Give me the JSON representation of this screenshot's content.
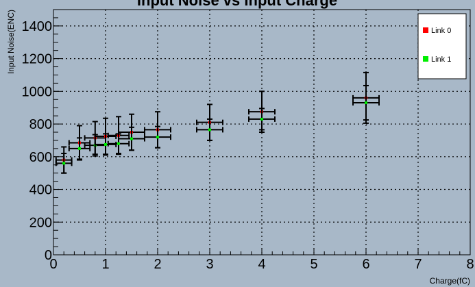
{
  "chart_data": {
    "type": "scatter",
    "title": "Input Noise vs Input Charge",
    "xlabel": "Charge(fC)",
    "ylabel": "Input Noise(ENC)",
    "xlim": [
      0,
      8
    ],
    "ylim": [
      0,
      1500
    ],
    "x_ticks": [
      0,
      1,
      2,
      3,
      4,
      5,
      6,
      7,
      8
    ],
    "y_ticks": [
      0,
      200,
      400,
      600,
      800,
      1000,
      1200,
      1400
    ],
    "grid": true,
    "legend_position": "top-right",
    "colors": {
      "background": "#a8b8c8",
      "link0": "#ff0000",
      "link1": "#00ee00",
      "errorbar": "#000000"
    },
    "series": [
      {
        "name": "Link 0",
        "x": [
          0.2,
          0.5,
          0.8,
          1.0,
          1.25,
          1.5,
          2.0,
          3.0,
          4.0,
          6.0
        ],
        "y": [
          580,
          685,
          715,
          725,
          730,
          750,
          765,
          810,
          875,
          960
        ],
        "x_err": [
          0.15,
          0.2,
          0.2,
          0.2,
          0.2,
          0.25,
          0.25,
          0.25,
          0.25,
          0.25
        ],
        "y_err": [
          80,
          105,
          100,
          110,
          115,
          110,
          110,
          110,
          125,
          155
        ]
      },
      {
        "name": "Link 1",
        "x": [
          0.2,
          0.5,
          0.8,
          1.0,
          1.25,
          1.5,
          2.0,
          3.0,
          4.0,
          6.0
        ],
        "y": [
          560,
          650,
          670,
          675,
          680,
          710,
          720,
          765,
          830,
          930
        ],
        "x_err": [
          0.15,
          0.2,
          0.2,
          0.2,
          0.2,
          0.25,
          0.25,
          0.25,
          0.25,
          0.25
        ],
        "y_err": [
          60,
          65,
          65,
          65,
          60,
          70,
          65,
          65,
          65,
          105
        ]
      }
    ]
  }
}
